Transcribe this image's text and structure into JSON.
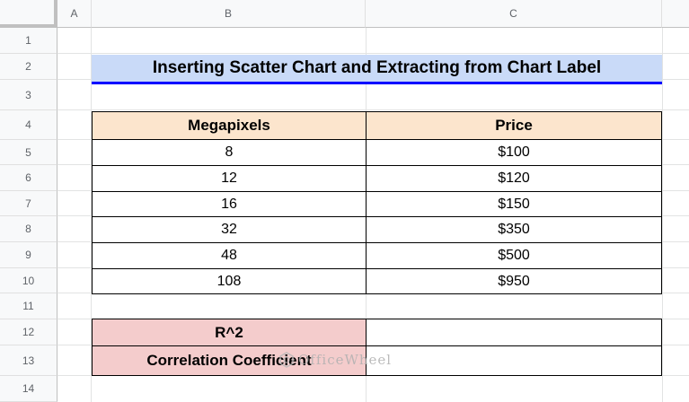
{
  "columns": [
    "A",
    "B",
    "C"
  ],
  "rows": [
    "1",
    "2",
    "3",
    "4",
    "5",
    "6",
    "7",
    "8",
    "9",
    "10",
    "11",
    "12",
    "13",
    "14"
  ],
  "title": "Inserting Scatter Chart and Extracting from Chart Label",
  "table": {
    "headers": [
      "Megapixels",
      "Price"
    ],
    "rows": [
      [
        "8",
        "$100"
      ],
      [
        "12",
        "$120"
      ],
      [
        "16",
        "$150"
      ],
      [
        "32",
        "$350"
      ],
      [
        "48",
        "$500"
      ],
      [
        "108",
        "$950"
      ]
    ]
  },
  "stats": {
    "r2_label": "R^2",
    "r2_value": "",
    "corr_label": "Correlation Coefficient",
    "corr_value": ""
  },
  "watermark": "OfficeWheel"
}
